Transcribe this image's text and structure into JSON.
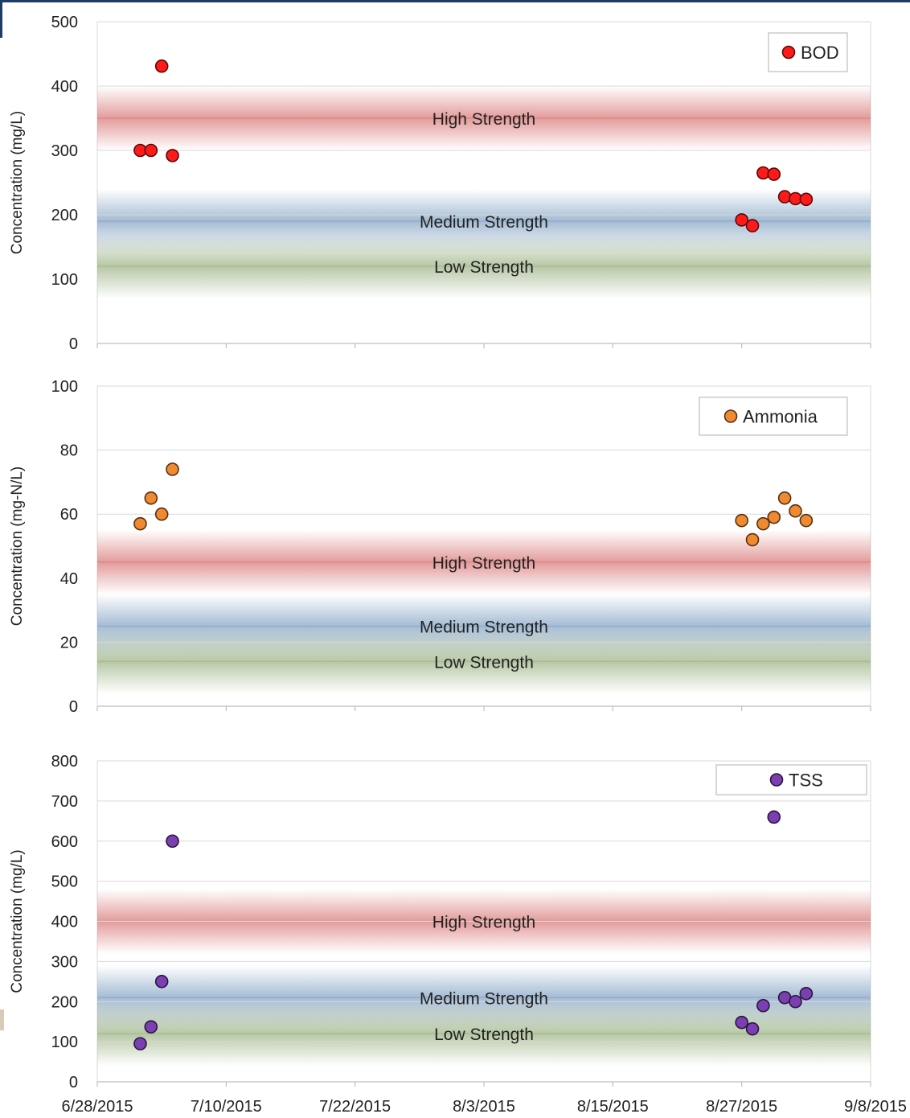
{
  "x_axis": {
    "tick_labels": [
      "6/28/2015",
      "7/10/2015",
      "7/22/2015",
      "8/3/2015",
      "8/15/2015",
      "8/27/2015",
      "9/8/2015"
    ]
  },
  "chart_data": [
    {
      "type": "scatter",
      "title": "",
      "ylabel": "Concentration (mg/L)",
      "ylim": [
        0,
        500
      ],
      "yticks": [
        0,
        100,
        200,
        300,
        400,
        500
      ],
      "xlim": [
        "2015-06-28",
        "2015-09-08"
      ],
      "grid": true,
      "legend_position": "top-right",
      "series": [
        {
          "name": "BOD",
          "color": "#ff1a1a",
          "points": [
            {
              "x": "2015-07-02",
              "y": 300
            },
            {
              "x": "2015-07-03",
              "y": 300
            },
            {
              "x": "2015-07-04",
              "y": 431
            },
            {
              "x": "2015-07-05",
              "y": 292
            },
            {
              "x": "2015-08-27",
              "y": 192
            },
            {
              "x": "2015-08-28",
              "y": 183
            },
            {
              "x": "2015-08-29",
              "y": 265
            },
            {
              "x": "2015-08-30",
              "y": 263
            },
            {
              "x": "2015-08-31",
              "y": 228
            },
            {
              "x": "2015-09-01",
              "y": 225
            },
            {
              "x": "2015-09-02",
              "y": 224
            }
          ]
        }
      ],
      "bands": [
        {
          "label": "High Strength",
          "value": 350,
          "color": "#cc4a4a"
        },
        {
          "label": "Medium Strength",
          "value": 190,
          "color": "#5a84b0"
        },
        {
          "label": "Low Strength",
          "value": 120,
          "color": "#7b9a5c"
        }
      ]
    },
    {
      "type": "scatter",
      "title": "",
      "ylabel": "Concentration (mg-N/L)",
      "ylim": [
        0,
        100
      ],
      "yticks": [
        0,
        20,
        40,
        60,
        80,
        100
      ],
      "xlim": [
        "2015-06-28",
        "2015-09-08"
      ],
      "grid": true,
      "legend_position": "top-right",
      "series": [
        {
          "name": "Ammonia",
          "color": "#f08a30",
          "points": [
            {
              "x": "2015-07-02",
              "y": 57
            },
            {
              "x": "2015-07-03",
              "y": 65
            },
            {
              "x": "2015-07-04",
              "y": 60
            },
            {
              "x": "2015-07-05",
              "y": 74
            },
            {
              "x": "2015-08-27",
              "y": 58
            },
            {
              "x": "2015-08-28",
              "y": 52
            },
            {
              "x": "2015-08-29",
              "y": 57
            },
            {
              "x": "2015-08-30",
              "y": 59
            },
            {
              "x": "2015-08-31",
              "y": 65
            },
            {
              "x": "2015-09-01",
              "y": 61
            },
            {
              "x": "2015-09-02",
              "y": 58
            }
          ]
        }
      ],
      "bands": [
        {
          "label": "High Strength",
          "value": 45,
          "color": "#cc4a4a"
        },
        {
          "label": "Medium Strength",
          "value": 25,
          "color": "#5a84b0"
        },
        {
          "label": "Low Strength",
          "value": 14,
          "color": "#7b9a5c"
        }
      ]
    },
    {
      "type": "scatter",
      "title": "",
      "ylabel": "Concentration (mg/L)",
      "ylim": [
        0,
        800
      ],
      "yticks": [
        0,
        100,
        200,
        300,
        400,
        500,
        600,
        700,
        800
      ],
      "xlim": [
        "2015-06-28",
        "2015-09-08"
      ],
      "grid": true,
      "legend_position": "top-right",
      "series": [
        {
          "name": "TSS",
          "color": "#7a3fb0",
          "points": [
            {
              "x": "2015-07-02",
              "y": 95
            },
            {
              "x": "2015-07-03",
              "y": 137
            },
            {
              "x": "2015-07-04",
              "y": 250
            },
            {
              "x": "2015-07-05",
              "y": 600
            },
            {
              "x": "2015-08-27",
              "y": 148
            },
            {
              "x": "2015-08-28",
              "y": 132
            },
            {
              "x": "2015-08-29",
              "y": 190
            },
            {
              "x": "2015-08-30",
              "y": 660
            },
            {
              "x": "2015-08-31",
              "y": 210
            },
            {
              "x": "2015-09-01",
              "y": 200
            },
            {
              "x": "2015-09-02",
              "y": 220
            }
          ]
        }
      ],
      "bands": [
        {
          "label": "High Strength",
          "value": 400,
          "color": "#cc4a4a"
        },
        {
          "label": "Medium Strength",
          "value": 210,
          "color": "#5a84b0"
        },
        {
          "label": "Low Strength",
          "value": 120,
          "color": "#7b9a5c"
        }
      ]
    }
  ]
}
